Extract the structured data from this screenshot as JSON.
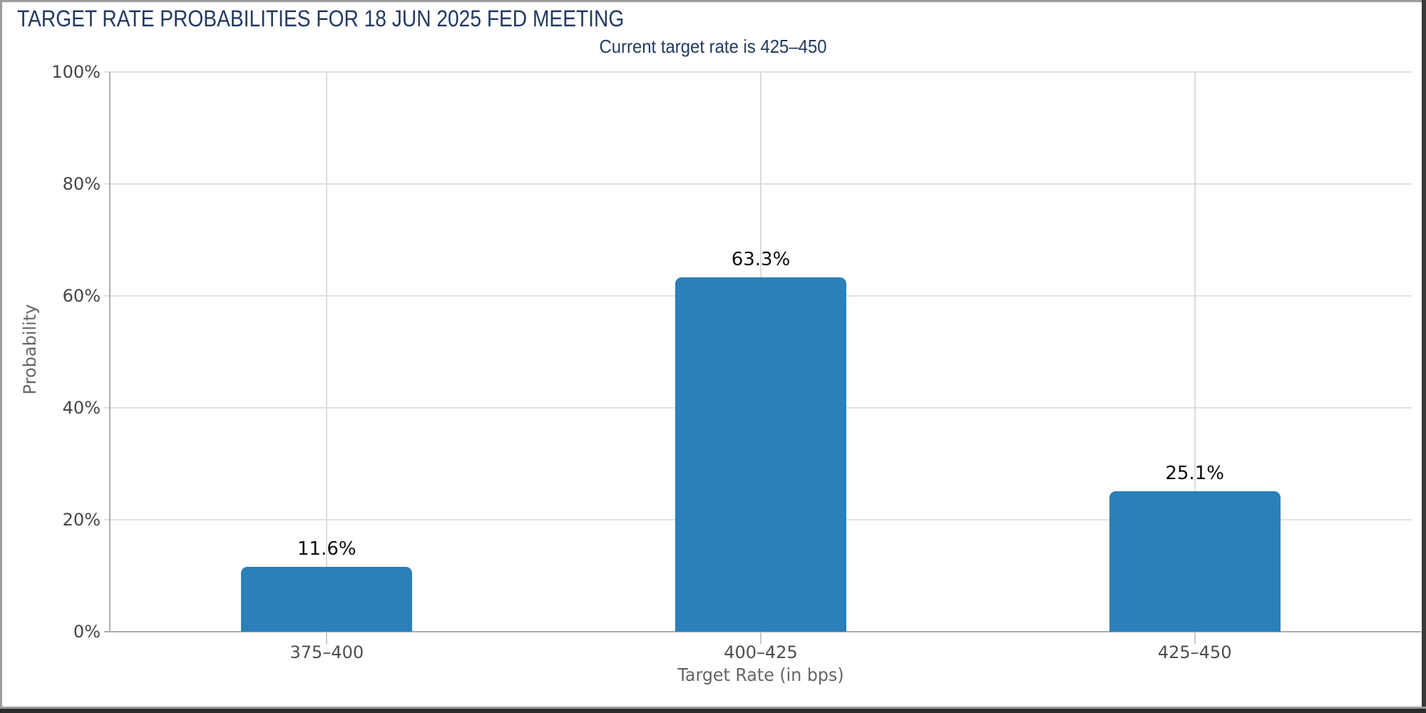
{
  "header": {
    "title": "TARGET RATE PROBABILITIES FOR 18 JUN 2025 FED MEETING",
    "subtitle": "Current target rate is 425–450"
  },
  "chart_data": {
    "type": "bar",
    "title": "TARGET RATE PROBABILITIES FOR 18 JUN 2025 FED MEETING",
    "subtitle": "Current target rate is 425–450",
    "categories": [
      "375–400",
      "400–425",
      "425–450"
    ],
    "values": [
      11.6,
      63.3,
      25.1
    ],
    "value_labels": [
      "11.6%",
      "63.3%",
      "25.1%"
    ],
    "xlabel": "Target Rate (in bps)",
    "ylabel": "Probability",
    "ylim": [
      0,
      100
    ],
    "yticks": [
      0,
      20,
      40,
      60,
      80,
      100
    ],
    "ytick_labels": [
      "0%",
      "20%",
      "40%",
      "60%",
      "80%",
      "100%"
    ],
    "grid": true,
    "legend": "none",
    "bar_color": "#2B80B9",
    "title_color": "#233A60",
    "axis_text_color": "#454545"
  }
}
